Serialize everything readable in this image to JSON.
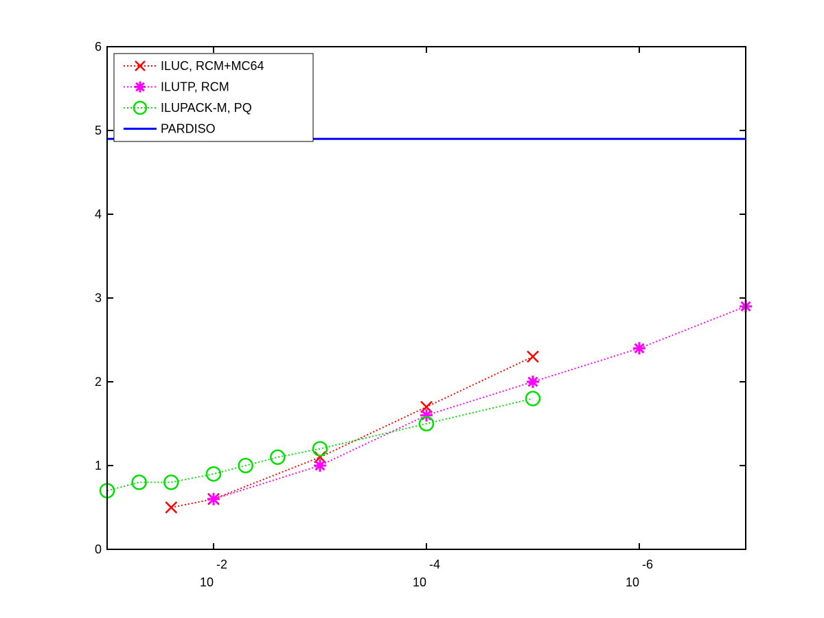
{
  "chart_data": {
    "type": "line",
    "xscale": "log",
    "xaxis_reversed": true,
    "xlim": [
      0.1,
      1e-07
    ],
    "ylim": [
      0,
      6
    ],
    "yticks": [
      0,
      1,
      2,
      3,
      4,
      5,
      6
    ],
    "xticks": [
      {
        "value": 0.01,
        "base": "10",
        "exponent": "-2"
      },
      {
        "value": 0.0001,
        "base": "10",
        "exponent": "-4"
      },
      {
        "value": 1e-06,
        "base": "10",
        "exponent": "-6"
      }
    ],
    "title": "",
    "xlabel": "",
    "ylabel": "",
    "grid": false,
    "legend_position": "top-left",
    "series": [
      {
        "name": "ILUC, RCM+MC64",
        "color": "#ff0000",
        "marker": "x",
        "linestyle": "dotted",
        "x": [
          0.025,
          0.01,
          0.001,
          0.0001,
          1e-05
        ],
        "y": [
          0.5,
          0.6,
          1.1,
          1.7,
          2.3
        ]
      },
      {
        "name": "ILUTP, RCM",
        "color": "#ff00ff",
        "marker": "asterisk",
        "linestyle": "dotted",
        "x": [
          0.01,
          0.001,
          0.0001,
          1e-05,
          1e-06,
          1e-07
        ],
        "y": [
          0.6,
          1.0,
          1.6,
          2.0,
          2.4,
          2.9
        ]
      },
      {
        "name": "ILUPACK-M, PQ",
        "color": "#00e000",
        "marker": "circle",
        "linestyle": "dotted",
        "x": [
          0.1,
          0.05,
          0.025,
          0.01,
          0.005,
          0.0025,
          0.001,
          0.0001,
          1e-05
        ],
        "y": [
          0.7,
          0.8,
          0.8,
          0.9,
          1.0,
          1.1,
          1.2,
          1.5,
          1.8
        ]
      },
      {
        "name": "PARDISO",
        "color": "#0000ff",
        "marker": "none",
        "linestyle": "solid",
        "x": [
          0.1,
          1e-07
        ],
        "y": [
          4.9,
          4.9
        ]
      }
    ]
  }
}
